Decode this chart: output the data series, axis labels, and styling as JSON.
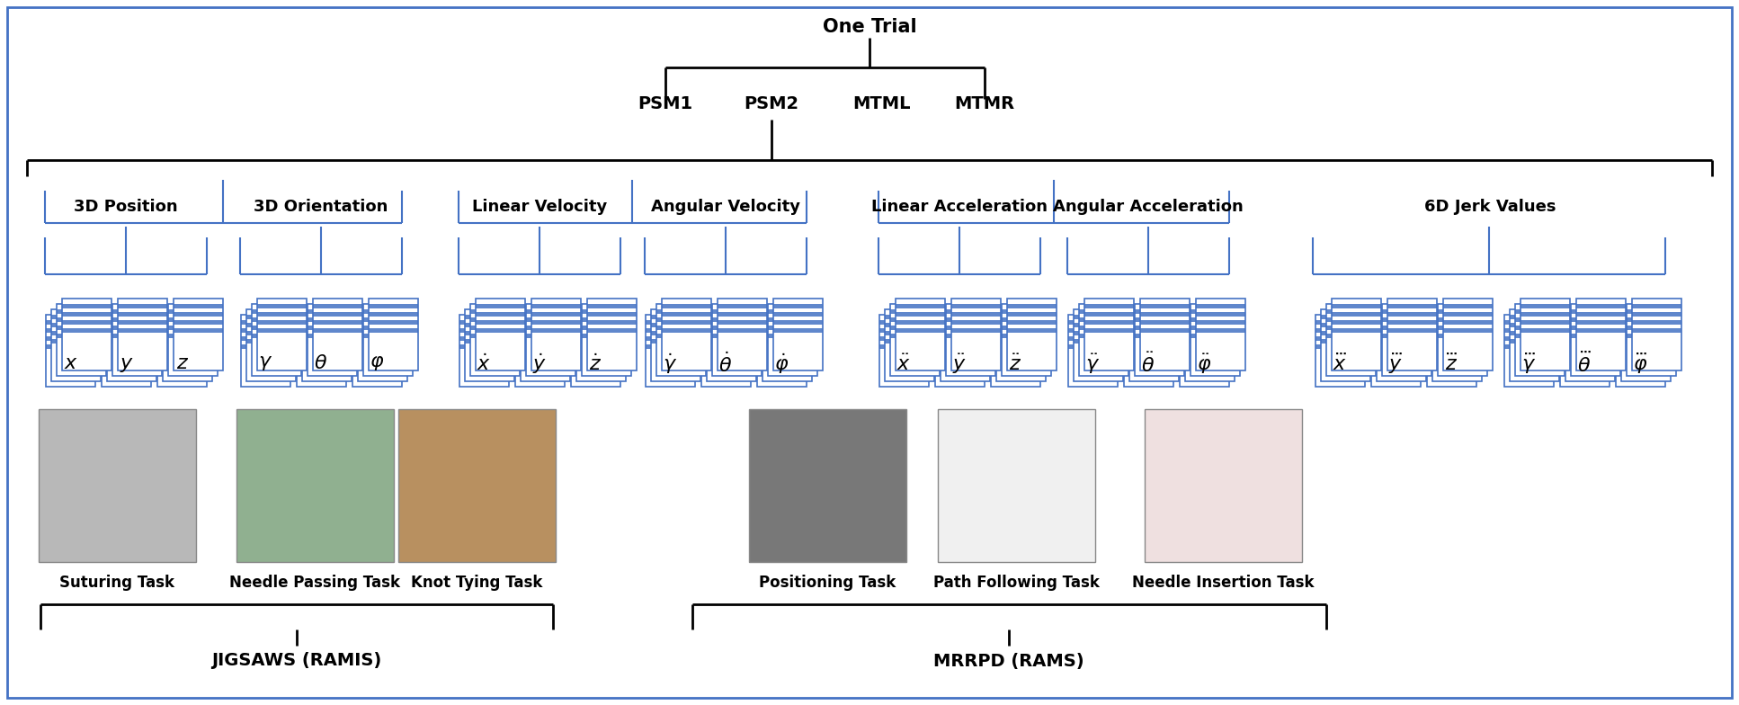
{
  "title": "One Trial",
  "psm_labels": [
    "PSM1",
    "PSM2",
    "MTML",
    "MTMR"
  ],
  "category_labels": [
    "3D Position",
    "3D Orientation",
    "Linear Velocity",
    "Angular Velocity",
    "Linear Acceleration",
    "Angular Acceleration",
    "6D Jerk Values"
  ],
  "task_names": [
    "Suturing Task",
    "Needle Passing Task",
    "Knot Tying Task",
    "Positioning Task",
    "Path Following Task",
    "Needle Insertion Task"
  ],
  "dataset_labels": [
    "JIGSAWS (RAMIS)",
    "MRRPD (RAMS)"
  ],
  "bg_color": "#ffffff",
  "border_color": "#4472c4",
  "card_stripe_color": "#4472c4",
  "bracket_color": "#4472c4",
  "line_color": "#000000",
  "title_fontsize": 15,
  "psm_fontsize": 14,
  "cat_fontsize": 13,
  "card_fontsize": 16,
  "task_fontsize": 12,
  "dataset_fontsize": 14
}
